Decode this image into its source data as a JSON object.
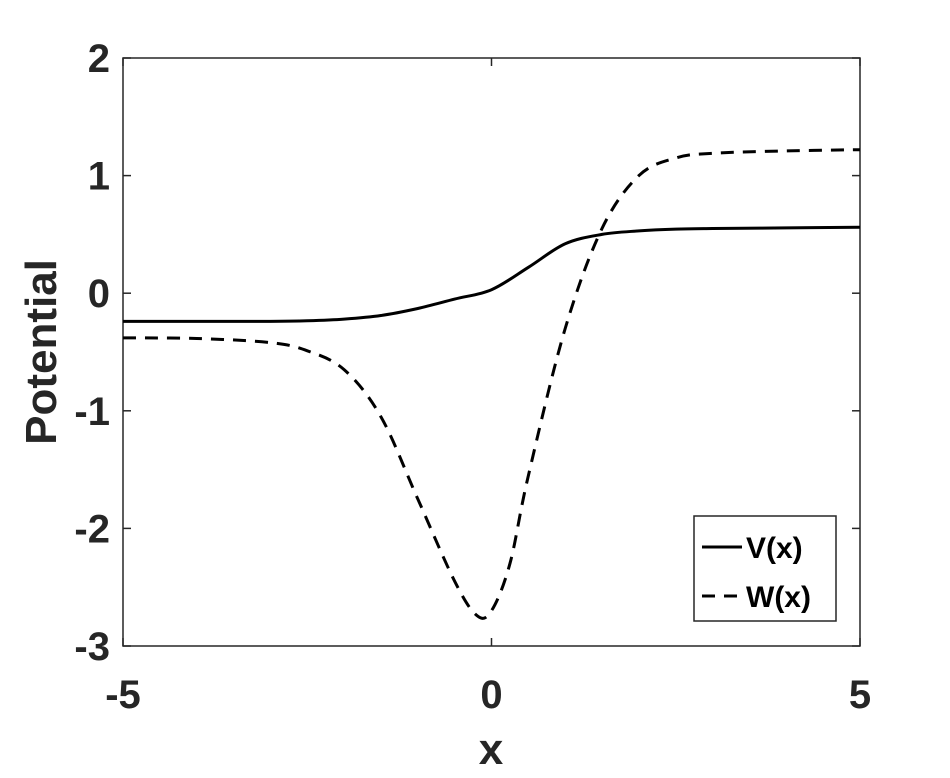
{
  "chart_data": {
    "type": "line",
    "xlabel": "x",
    "ylabel": "Potential",
    "xlim": [
      -5,
      5
    ],
    "ylim": [
      -3,
      2
    ],
    "xticks": [
      -5,
      0,
      5
    ],
    "yticks": [
      -3,
      -2,
      -1,
      0,
      1,
      2
    ],
    "grid": false,
    "legend_position": "bottom-right",
    "series": [
      {
        "name": "V(x)",
        "style": "solid",
        "color": "#000000",
        "x": [
          -5,
          -4,
          -3,
          -2.5,
          -2,
          -1.5,
          -1,
          -0.5,
          0,
          0.5,
          1,
          1.5,
          2,
          2.5,
          3,
          4,
          5
        ],
        "y": [
          -0.24,
          -0.24,
          -0.24,
          -0.235,
          -0.22,
          -0.19,
          -0.13,
          -0.05,
          0.03,
          0.22,
          0.42,
          0.5,
          0.53,
          0.545,
          0.55,
          0.555,
          0.56
        ]
      },
      {
        "name": "W(x)",
        "style": "dashed",
        "color": "#000000",
        "x": [
          -5,
          -4,
          -3,
          -2.5,
          -2,
          -1.5,
          -1,
          -0.5,
          -0.2,
          0,
          0.25,
          0.5,
          1,
          1.5,
          2,
          2.5,
          3,
          4,
          5
        ],
        "y": [
          -0.38,
          -0.385,
          -0.42,
          -0.49,
          -0.65,
          -1.05,
          -1.75,
          -2.45,
          -2.74,
          -2.7,
          -2.3,
          -1.55,
          -0.3,
          0.55,
          1.0,
          1.15,
          1.19,
          1.21,
          1.22
        ]
      }
    ]
  }
}
